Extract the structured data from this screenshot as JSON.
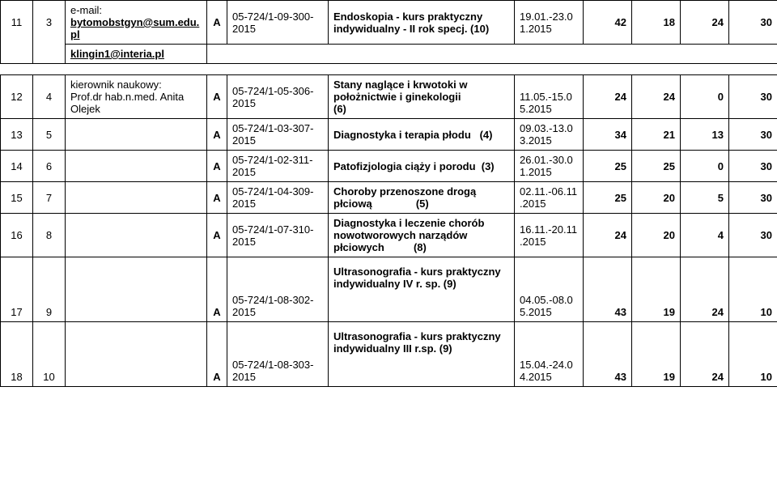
{
  "rows": [
    {
      "c1": "11",
      "c2": "3",
      "c3_html": "<span>e-mail:</span><br><span class='b underline' data-name='email-link'>bytomobstgyn@sum.edu.pl</span>",
      "c4": "A",
      "c5": "05-724/1-09-300-2015",
      "c6": "Endoskopia - kurs praktyczny indywidualny  - II rok specj. (10)",
      "c7": "19.01.-23.01.2015",
      "c8": "42",
      "c9": "18",
      "c10": "24",
      "c11": "30",
      "c3_extra": "klingin1@interia.pl"
    },
    {
      "c1": "12",
      "c2": "4",
      "c3_html": "kierownik naukowy:<br>Prof.dr hab.n.med. Anita Olejek",
      "c4": "A",
      "c5": "05-724/1-05-306-2015",
      "c6_html": "Stany naglące i krwotoki w położnictwie i ginekologii<br>(6)",
      "c7_html": "<br>11.05.-15.05.2015",
      "c8": "24",
      "c9": "24",
      "c10": "0",
      "c11": "30"
    },
    {
      "c1": "13",
      "c2": "5",
      "c3_html": "",
      "c4": "A",
      "c5": "05-724/1-03-307-2015",
      "c6": "Diagnostyka i terapia płodu&nbsp;&nbsp;&nbsp;(4)",
      "c7": "09.03.-13.03.2015",
      "c8": "34",
      "c9": "21",
      "c10": "13",
      "c11": "30"
    },
    {
      "c1": "14",
      "c2": "6",
      "c3_html": "",
      "c4": "A",
      "c5": "05-724/1-02-311-2015",
      "c6": "Patofizjologia ciąży i porodu&nbsp;&nbsp;(3)",
      "c7": "26.01.-30.01.2015",
      "c8": "25",
      "c9": "25",
      "c10": "0",
      "c11": "30"
    },
    {
      "c1": "15",
      "c2": "7",
      "c3_html": "",
      "c4": "A",
      "c5": "05-724/1-04-309-2015",
      "c6_html": "Choroby przenoszone drogą płciową&nbsp;&nbsp;&nbsp;&nbsp;&nbsp;&nbsp;&nbsp;&nbsp;&nbsp;&nbsp;&nbsp;&nbsp;&nbsp;&nbsp;&nbsp;(5)",
      "c7": "02.11.-06.11.2015",
      "c8": "25",
      "c9": "20",
      "c10": "5",
      "c11": "30"
    },
    {
      "c1": "16",
      "c2": "8",
      "c3_html": "",
      "c4": "A",
      "c5": "05-724/1-07-310-2015",
      "c6_html": "Diagnostyka i leczenie chorób nowotworowych narządów płciowych&nbsp;&nbsp;&nbsp;&nbsp;&nbsp;&nbsp;&nbsp;&nbsp;&nbsp;&nbsp;(8)",
      "c7": "16.11.-20.11.2015",
      "c8": "24",
      "c9": "20",
      "c10": "4",
      "c11": "30"
    },
    {
      "c1": "17",
      "c2": "9",
      "c3_html": "",
      "c4": "A",
      "c5": "05-724/1-08-302-2015",
      "c6_html": "Ultrasonografia - kurs praktyczny indywidualny IV r. sp. (9)",
      "c7": "04.05.-08.05.2015",
      "c8": "43",
      "c9": "19",
      "c10": "24",
      "c11": "10",
      "tall": true
    },
    {
      "c1": "18",
      "c2": "10",
      "c3_html": "",
      "c4": "A",
      "c5": "05-724/1-08-303-2015",
      "c6_html": "Ultrasonografia - kurs praktyczny indywidualny III r.sp. (9)",
      "c7_html": "<br><br>15.04.-24.04.2015",
      "c8": "43",
      "c9": "19",
      "c10": "24",
      "c11": "10",
      "tall": true
    }
  ]
}
